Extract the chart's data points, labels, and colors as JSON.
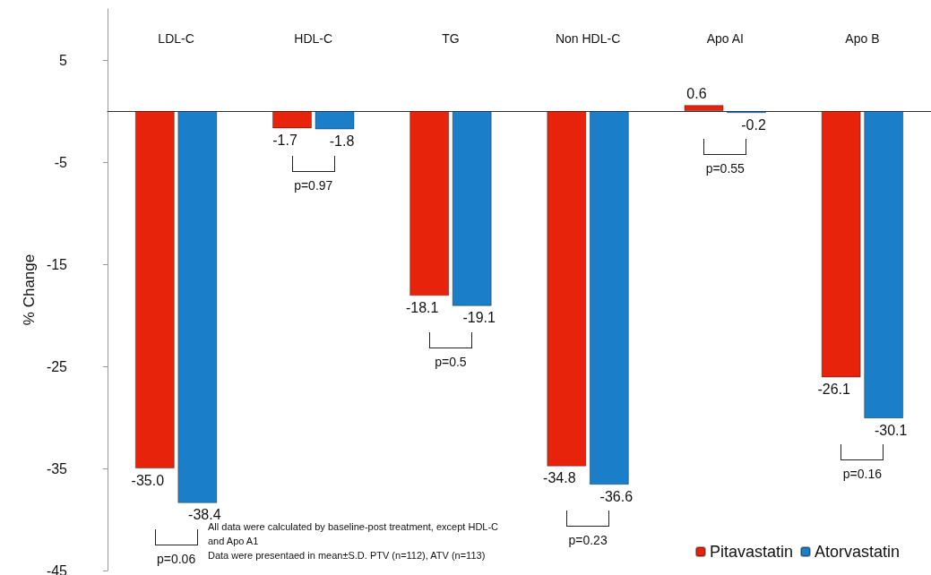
{
  "chart_data": {
    "type": "bar",
    "ylabel": "% Change",
    "categories": [
      "LDL-C",
      "HDL-C",
      "TG",
      "Non HDL-C",
      "Apo AI",
      "Apo B"
    ],
    "series": [
      {
        "name": "Pitavastatin",
        "color": "#e8230c",
        "values": [
          -35.0,
          -1.7,
          -18.1,
          -34.8,
          0.6,
          -26.1
        ],
        "value_labels": [
          "-35.0",
          "-1.7",
          "-18.1",
          "-34.8",
          "0.6",
          "-26.1"
        ]
      },
      {
        "name": "Atorvastatin",
        "color": "#1a7fc8",
        "values": [
          -38.4,
          -1.8,
          -19.1,
          -36.6,
          -0.2,
          -30.1
        ],
        "value_labels": [
          "-38.4",
          "-1.8",
          "-19.1",
          "-36.6",
          "-0.2",
          "-30.1"
        ]
      }
    ],
    "ylim": [
      -45,
      10
    ],
    "yticks": [
      -45,
      -35,
      -25,
      -15,
      -5,
      5
    ],
    "grid": false,
    "legend": "bottom right",
    "annotations": [
      "p=0.06",
      "p=0.97",
      "p=0.5",
      "p=0.23",
      "p=0.55",
      "p=0.16",
      "All data were calculated by baseline-post treatment, except HDL-C and Apo A1\nData were presentaed in mean±S.D. PTV (n=112), ATV (n=113)"
    ]
  }
}
